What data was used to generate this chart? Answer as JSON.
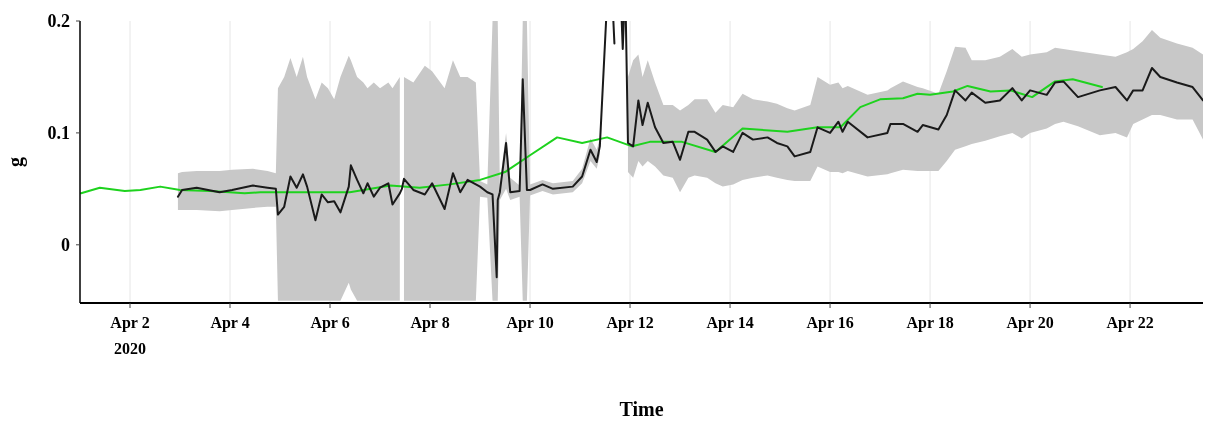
{
  "chart_data": {
    "type": "line",
    "xlabel": "Time",
    "ylabel": "g",
    "xlim": [
      "2020-04-01",
      "2020-04-23T11:00"
    ],
    "ylim": [
      -0.052,
      0.2
    ],
    "yticks": [
      0,
      0.1,
      0.2
    ],
    "xticks": [
      {
        "value": "2020-04-02",
        "label": "Apr 2\n2020"
      },
      {
        "value": "2020-04-04",
        "label": "Apr 4"
      },
      {
        "value": "2020-04-06",
        "label": "Apr 6"
      },
      {
        "value": "2020-04-08",
        "label": "Apr 8"
      },
      {
        "value": "2020-04-10",
        "label": "Apr 10"
      },
      {
        "value": "2020-04-12",
        "label": "Apr 12"
      },
      {
        "value": "2020-04-14",
        "label": "Apr 14"
      },
      {
        "value": "2020-04-16",
        "label": "Apr 16"
      },
      {
        "value": "2020-04-18",
        "label": "Apr 18"
      },
      {
        "value": "2020-04-20",
        "label": "Apr 20"
      },
      {
        "value": "2020-04-22",
        "label": "Apr 22"
      }
    ],
    "grid": "x",
    "marker": "none",
    "line_style": "solid",
    "series": [
      {
        "color": "#1ed21e",
        "x": [
          "2020-04-01T00:30",
          "2020-04-01T09:30",
          "2020-04-01T21:30",
          "2020-04-02T05:00",
          "2020-04-02T14:30",
          "2020-04-03T00:00",
          "2020-04-03T14:30",
          "2020-04-04T07:00",
          "2020-04-04T14:30",
          "2020-04-05T09:30",
          "2020-04-06T09:30",
          "2020-04-07T05:00",
          "2020-04-07T19:00",
          "2020-04-08T09:30",
          "2020-04-09T00:00",
          "2020-04-09T12:00",
          "2020-04-10T00:00",
          "2020-04-10T13:00",
          "2020-04-11T01:00",
          "2020-04-11T13:00",
          "2020-04-12T01:00",
          "2020-04-12T09:30",
          "2020-04-13T01:00",
          "2020-04-13T17:00",
          "2020-04-14T06:00",
          "2020-04-15T03:30",
          "2020-04-15T18:00",
          "2020-04-16T05:00",
          "2020-04-16T14:30",
          "2020-04-17T00:00",
          "2020-04-17T11:00",
          "2020-04-17T18:00",
          "2020-04-18T00:00",
          "2020-04-18T11:00",
          "2020-04-18T18:00",
          "2020-04-19T05:00",
          "2020-04-19T14:30",
          "2020-04-20T01:00",
          "2020-04-20T12:00",
          "2020-04-20T20:30",
          "2020-04-21T10:30"
        ],
        "values": [
          0.046,
          0.051,
          0.048,
          0.049,
          0.052,
          0.049,
          0.048,
          0.046,
          0.047,
          0.047,
          0.047,
          0.053,
          0.051,
          0.054,
          0.058,
          0.065,
          0.08,
          0.096,
          0.091,
          0.096,
          0.088,
          0.092,
          0.092,
          0.083,
          0.104,
          0.101,
          0.105,
          0.105,
          0.123,
          0.13,
          0.131,
          0.135,
          0.134,
          0.137,
          0.142,
          0.137,
          0.138,
          0.132,
          0.146,
          0.148,
          0.141
        ]
      },
      {
        "color": "#1a1a1a",
        "x": [
          "2020-04-02T23:00",
          "2020-04-03T01:00",
          "2020-04-03T08:00",
          "2020-04-03T19:00",
          "2020-04-04T01:00",
          "2020-04-04T11:00",
          "2020-04-04T18:00",
          "2020-04-04T22:00",
          "2020-04-04T23:00",
          "2020-04-05T02:00",
          "2020-04-05T05:00",
          "2020-04-05T08:00",
          "2020-04-05T11:00",
          "2020-04-05T13:00",
          "2020-04-05T17:00",
          "2020-04-05T20:00",
          "2020-04-05T23:00",
          "2020-04-06T02:00",
          "2020-04-06T05:00",
          "2020-04-06T09:00",
          "2020-04-06T10:00",
          "2020-04-06T13:00",
          "2020-04-06T16:00",
          "2020-04-06T18:00",
          "2020-04-06T21:00",
          "2020-04-07T00:00",
          "2020-04-07T04:00",
          "2020-04-07T06:00",
          "2020-04-07T09:30",
          "2020-04-07T10:30",
          "2020-04-07T11:30",
          "2020-04-07T16:00",
          "2020-04-07T21:30",
          "2020-04-08T01:00",
          "2020-04-08T07:00",
          "2020-04-08T11:00",
          "2020-04-08T14:30",
          "2020-04-08T18:00",
          "2020-04-08T22:00",
          "2020-04-09T00:00",
          "2020-04-09T03:30",
          "2020-04-09T06:00",
          "2020-04-09T08:00",
          "2020-04-09T08:30",
          "2020-04-09T09:30",
          "2020-04-09T12:30",
          "2020-04-09T14:30",
          "2020-04-09T19:00",
          "2020-04-09T20:30",
          "2020-04-09T22:30",
          "2020-04-10T00:00",
          "2020-04-10T06:00",
          "2020-04-10T11:00",
          "2020-04-10T20:30",
          "2020-04-11T01:00",
          "2020-04-11T05:00",
          "2020-04-11T08:00",
          "2020-04-11T09:30",
          "2020-04-11T12:30",
          "2020-04-11T13:00",
          "2020-04-11T16:00",
          "2020-04-11T16:30",
          "2020-04-11T17:00",
          "2020-04-11T20:00",
          "2020-04-11T20:30",
          "2020-04-11T21:00",
          "2020-04-11T21:30",
          "2020-04-11T22:00",
          "2020-04-11T23:00",
          "2020-04-12T01:30",
          "2020-04-12T04:00",
          "2020-04-12T06:00",
          "2020-04-12T08:30",
          "2020-04-12T12:00",
          "2020-04-12T16:00",
          "2020-04-12T20:30",
          "2020-04-13T00:00",
          "2020-04-13T04:00",
          "2020-04-13T07:00",
          "2020-04-13T13:00",
          "2020-04-13T17:00",
          "2020-04-13T20:30",
          "2020-04-14T01:30",
          "2020-04-14T06:00",
          "2020-04-14T11:00",
          "2020-04-14T18:00",
          "2020-04-14T22:30",
          "2020-04-15T03:30",
          "2020-04-15T07:00",
          "2020-04-15T14:30",
          "2020-04-15T18:00",
          "2020-04-16T00:00",
          "2020-04-16T04:00",
          "2020-04-16T06:00",
          "2020-04-16T08:30",
          "2020-04-16T18:00",
          "2020-04-17T03:30",
          "2020-04-17T05:00",
          "2020-04-17T11:00",
          "2020-04-17T18:00",
          "2020-04-17T20:30",
          "2020-04-18T04:00",
          "2020-04-18T08:00",
          "2020-04-18T12:00",
          "2020-04-18T17:00",
          "2020-04-18T20:00",
          "2020-04-19T02:30",
          "2020-04-19T09:30",
          "2020-04-19T15:30",
          "2020-04-19T20:00",
          "2020-04-20T00:00",
          "2020-04-20T08:00",
          "2020-04-20T12:00",
          "2020-04-20T16:00",
          "2020-04-20T23:00",
          "2020-04-21T09:30",
          "2020-04-21T17:00",
          "2020-04-21T22:30",
          "2020-04-22T01:30",
          "2020-04-22T06:00",
          "2020-04-22T10:30",
          "2020-04-22T14:30",
          "2020-04-22T22:30",
          "2020-04-23T06:00",
          "2020-04-23T11:00"
        ],
        "values": [
          0.043,
          0.049,
          0.051,
          0.047,
          0.049,
          0.053,
          0.051,
          0.05,
          0.027,
          0.034,
          0.061,
          0.051,
          0.063,
          0.052,
          0.022,
          0.045,
          0.038,
          0.039,
          0.029,
          0.052,
          0.071,
          0.058,
          0.046,
          0.055,
          0.043,
          0.051,
          0.055,
          0.036,
          0.046,
          0.05,
          0.059,
          0.049,
          0.045,
          0.055,
          0.032,
          0.064,
          0.047,
          0.058,
          0.054,
          0.052,
          0.047,
          0.045,
          -0.029,
          0.04,
          0.047,
          0.091,
          0.047,
          0.048,
          0.148,
          0.049,
          0.049,
          0.054,
          0.05,
          0.052,
          0.061,
          0.085,
          0.074,
          0.088,
          0.2,
          null,
          0.2,
          0.18,
          null,
          0.2,
          0.175,
          0.2,
          null,
          0.2,
          0.091,
          0.088,
          0.129,
          0.107,
          0.127,
          0.105,
          0.091,
          0.092,
          0.076,
          0.101,
          0.101,
          0.094,
          0.083,
          0.088,
          0.083,
          0.1,
          0.094,
          0.096,
          0.091,
          0.088,
          0.079,
          0.083,
          0.105,
          0.1,
          0.11,
          0.101,
          0.11,
          0.096,
          0.1,
          0.108,
          0.108,
          0.101,
          0.107,
          0.103,
          0.116,
          0.138,
          0.129,
          0.136,
          0.127,
          0.129,
          0.14,
          0.129,
          0.138,
          0.134,
          0.145,
          0.146,
          0.132,
          0.138,
          0.141,
          0.129,
          0.138,
          0.138,
          0.158,
          0.15,
          0.145,
          0.141,
          0.129
        ],
        "lower": [
          0.031,
          0.031,
          0.031,
          0.03,
          0.031,
          0.033,
          0.034,
          0.034,
          -0.05,
          -0.05,
          -0.05,
          -0.05,
          -0.05,
          -0.05,
          -0.05,
          -0.05,
          -0.05,
          -0.05,
          -0.05,
          -0.034,
          -0.04,
          -0.05,
          -0.05,
          -0.05,
          -0.05,
          -0.05,
          -0.05,
          -0.05,
          -0.05,
          null,
          -0.05,
          -0.05,
          -0.05,
          -0.05,
          -0.05,
          -0.05,
          -0.05,
          -0.05,
          -0.05,
          0.043,
          0.042,
          -0.05,
          -0.05,
          -0.05,
          0.04,
          0.05,
          0.04,
          0.043,
          -0.05,
          -0.05,
          0.044,
          0.048,
          0.045,
          0.047,
          0.055,
          0.075,
          0.068,
          0.08,
          null,
          null,
          null,
          null,
          null,
          null,
          null,
          null,
          null,
          null,
          0.065,
          0.06,
          0.075,
          0.07,
          0.075,
          0.07,
          0.062,
          0.06,
          0.047,
          0.06,
          0.062,
          0.06,
          0.055,
          0.052,
          0.054,
          0.058,
          0.06,
          0.062,
          0.06,
          0.058,
          0.057,
          0.057,
          0.07,
          0.065,
          0.065,
          0.064,
          0.066,
          0.061,
          0.063,
          0.064,
          0.067,
          0.066,
          0.066,
          0.066,
          0.075,
          0.085,
          0.088,
          0.09,
          0.093,
          0.097,
          0.1,
          0.095,
          0.1,
          0.104,
          0.108,
          0.11,
          0.106,
          0.098,
          0.1,
          0.096,
          0.108,
          0.112,
          0.116,
          0.116,
          0.112,
          0.112,
          0.094
        ],
        "upper": [
          0.064,
          0.065,
          0.066,
          0.066,
          0.067,
          0.068,
          0.066,
          0.064,
          0.14,
          0.15,
          0.167,
          0.15,
          0.168,
          0.15,
          0.13,
          0.145,
          0.14,
          0.13,
          0.15,
          0.169,
          0.165,
          0.15,
          0.145,
          0.14,
          0.145,
          0.14,
          0.145,
          0.14,
          0.15,
          null,
          0.15,
          0.145,
          0.16,
          0.155,
          0.14,
          0.165,
          0.15,
          0.15,
          0.145,
          0.057,
          0.054,
          0.2,
          0.2,
          0.2,
          0.055,
          0.1,
          0.06,
          0.053,
          0.2,
          0.2,
          0.054,
          0.058,
          0.055,
          0.057,
          0.068,
          0.095,
          0.085,
          0.095,
          null,
          null,
          null,
          null,
          null,
          null,
          null,
          null,
          null,
          null,
          0.15,
          0.165,
          0.17,
          0.15,
          0.165,
          0.145,
          0.125,
          0.125,
          0.12,
          0.125,
          0.13,
          0.13,
          0.118,
          0.125,
          0.123,
          0.135,
          0.13,
          0.128,
          0.126,
          0.122,
          0.12,
          0.125,
          0.15,
          0.143,
          0.145,
          0.14,
          0.142,
          0.134,
          0.138,
          0.14,
          0.146,
          0.141,
          0.14,
          0.135,
          0.155,
          0.177,
          0.176,
          0.165,
          0.165,
          0.168,
          0.175,
          0.168,
          0.17,
          0.172,
          0.176,
          0.175,
          0.173,
          0.17,
          0.168,
          0.172,
          0.175,
          0.182,
          0.192,
          0.185,
          0.18,
          0.176,
          0.17
        ]
      }
    ]
  }
}
